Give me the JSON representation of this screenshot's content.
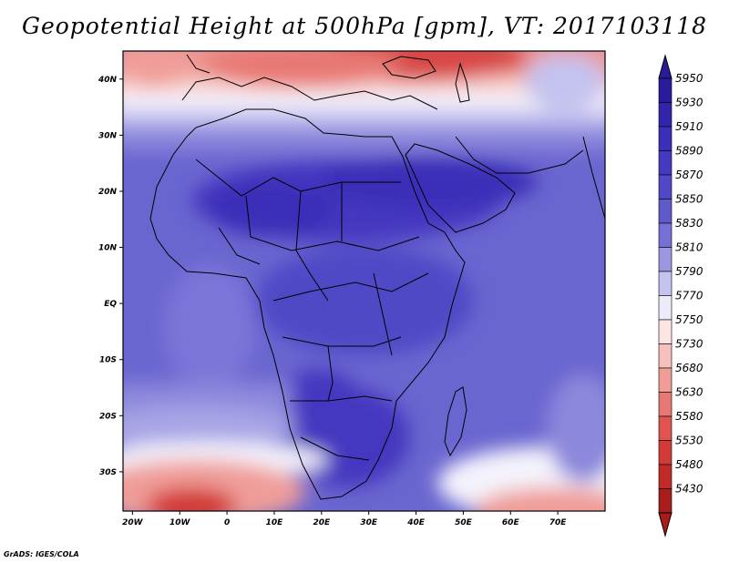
{
  "title": "Geopotential Height at 500hPa [gpm], VT: 2017103118",
  "credit": "GrADS: IGES/COLA",
  "map": {
    "lon_range": [
      -22,
      80
    ],
    "lat_range": [
      -37,
      45
    ],
    "lon_ticks": [
      {
        "value": -20,
        "label": "20W"
      },
      {
        "value": -10,
        "label": "10W"
      },
      {
        "value": 0,
        "label": "0"
      },
      {
        "value": 10,
        "label": "10E"
      },
      {
        "value": 20,
        "label": "20E"
      },
      {
        "value": 30,
        "label": "30E"
      },
      {
        "value": 40,
        "label": "40E"
      },
      {
        "value": 50,
        "label": "50E"
      },
      {
        "value": 60,
        "label": "60E"
      },
      {
        "value": 70,
        "label": "70E"
      }
    ],
    "lat_ticks": [
      {
        "value": 40,
        "label": "40N"
      },
      {
        "value": 30,
        "label": "30N"
      },
      {
        "value": 20,
        "label": "20N"
      },
      {
        "value": 10,
        "label": "10N"
      },
      {
        "value": 0,
        "label": "EQ"
      },
      {
        "value": -10,
        "label": "10S"
      },
      {
        "value": -20,
        "label": "20S"
      },
      {
        "value": -30,
        "label": "30S"
      }
    ]
  },
  "colorbar": {
    "levels": [
      {
        "label": "5950",
        "color": "#2a1a9c"
      },
      {
        "label": "5930",
        "color": "#3324ad"
      },
      {
        "label": "5910",
        "color": "#3a2fb8"
      },
      {
        "label": "5890",
        "color": "#4439c0"
      },
      {
        "label": "5870",
        "color": "#5048c6"
      },
      {
        "label": "5850",
        "color": "#5e5acc"
      },
      {
        "label": "5830",
        "color": "#7670d6"
      },
      {
        "label": "5810",
        "color": "#9a96e2"
      },
      {
        "label": "5790",
        "color": "#c4c2ef"
      },
      {
        "label": "5770",
        "color": "#ecebfa"
      },
      {
        "label": "5750",
        "color": "#fbe4e2"
      },
      {
        "label": "5730",
        "color": "#f6c1bd"
      },
      {
        "label": "5680",
        "color": "#f09d98"
      },
      {
        "label": "5630",
        "color": "#e87873"
      },
      {
        "label": "5580",
        "color": "#e0534f"
      },
      {
        "label": "5530",
        "color": "#d33a36"
      },
      {
        "label": "5480",
        "color": "#c22a27"
      },
      {
        "label": "5430",
        "color": "#a81c1a"
      }
    ]
  }
}
